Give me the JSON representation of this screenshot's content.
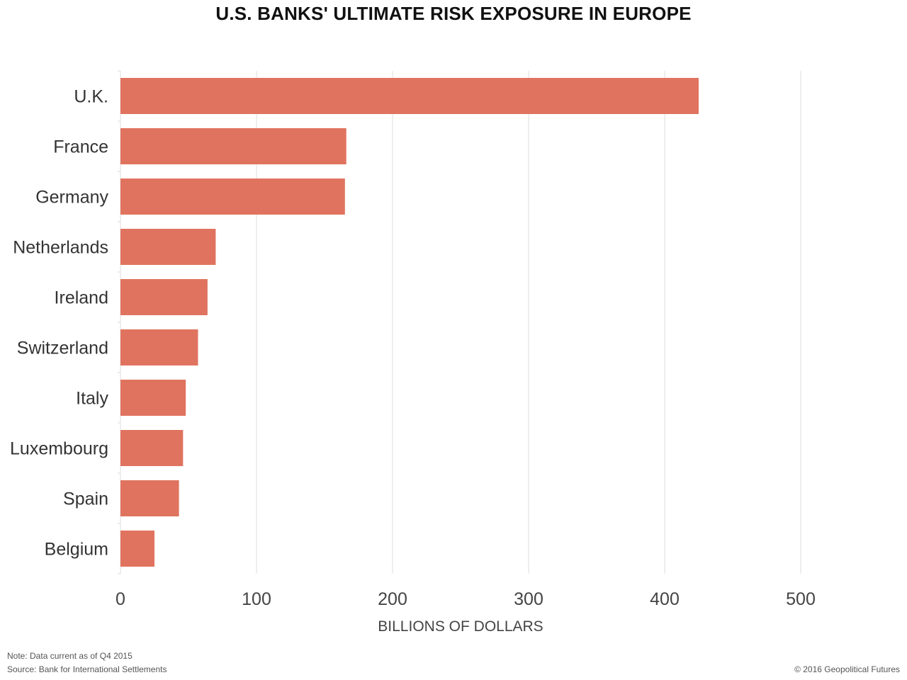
{
  "chart_data": {
    "type": "bar",
    "orientation": "horizontal",
    "title": "U.S. BANKS' ULTIMATE RISK EXPOSURE IN EUROPE",
    "xlabel": "BILLIONS OF DOLLARS",
    "ylabel": "",
    "categories": [
      "U.K.",
      "France",
      "Germany",
      "Netherlands",
      "Ireland",
      "Switzerland",
      "Italy",
      "Luxembourg",
      "Spain",
      "Belgium"
    ],
    "values": [
      425,
      166,
      165,
      70,
      64,
      57,
      48,
      46,
      43,
      25
    ],
    "xlim": [
      0,
      500
    ],
    "xticks": [
      "0",
      "100",
      "200",
      "300",
      "400",
      "500"
    ],
    "grid": "vertical",
    "bar_color": "#e0735f"
  },
  "footer": {
    "note": "Note: Data current as of Q4 2015",
    "source": "Source: Bank for International Settlements",
    "copyright": "© 2016 Geopolitical Futures"
  }
}
